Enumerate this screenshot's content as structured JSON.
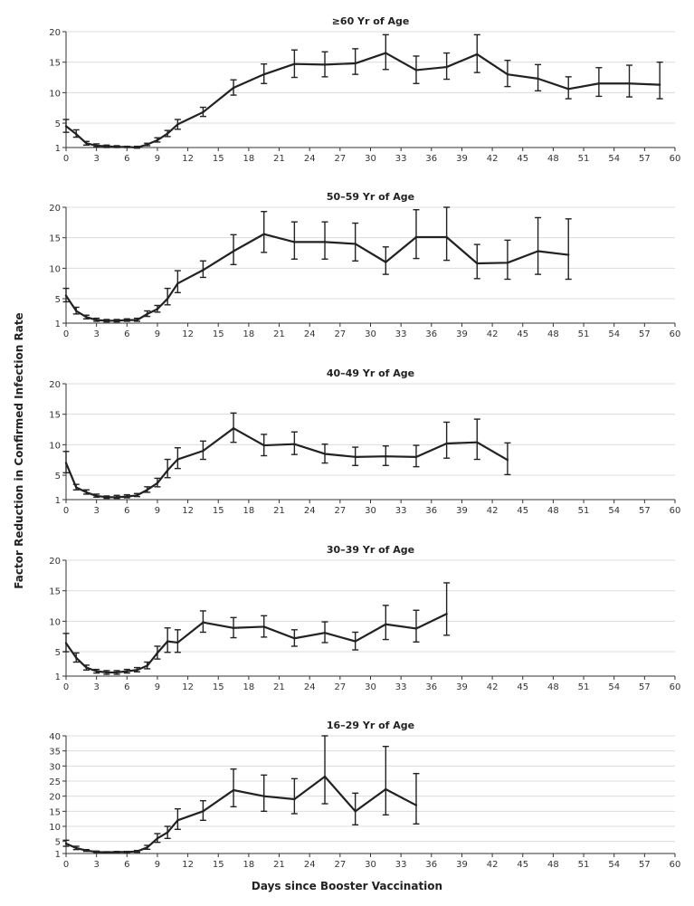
{
  "figure": {
    "ylabel": "Factor Reduction in Confirmed Infection Rate",
    "xlabel": "Days since Booster Vaccination"
  },
  "chart_data": [
    {
      "type": "line",
      "title": "≥60 Yr of Age",
      "xlim": [
        0,
        60
      ],
      "ylim": [
        1,
        20
      ],
      "x_ticks": [
        0,
        3,
        6,
        9,
        12,
        15,
        18,
        21,
        24,
        27,
        30,
        33,
        36,
        39,
        42,
        45,
        48,
        51,
        54,
        57,
        60
      ],
      "y_ticks": [
        1,
        5,
        10,
        15,
        20
      ],
      "series": [
        {
          "x": [
            0,
            1,
            2,
            3,
            4,
            5,
            6,
            7,
            8,
            9,
            10,
            11,
            13.5,
            16.5,
            19.5,
            22.5,
            25.5,
            28.5,
            31.5,
            34.5,
            37.5,
            40.5,
            43.5,
            46.5,
            49.5,
            52.5,
            55.5,
            58.5
          ],
          "y": [
            4.5,
            3.2,
            1.7,
            1.3,
            1.2,
            1.1,
            1.1,
            1.0,
            1.5,
            2.2,
            3.3,
            4.8,
            6.8,
            10.8,
            13.0,
            14.7,
            14.6,
            14.8,
            16.5,
            13.7,
            14.2,
            16.3,
            13.0,
            12.3,
            10.6,
            11.5,
            11.5,
            11.3
          ],
          "lower": [
            3.5,
            2.7,
            1.4,
            1.1,
            1.0,
            1.0,
            1.0,
            0.9,
            1.3,
            1.9,
            2.8,
            4.0,
            6.1,
            9.6,
            11.5,
            12.5,
            12.6,
            13.0,
            13.8,
            11.5,
            12.2,
            13.3,
            11.0,
            10.3,
            9.0,
            9.4,
            9.3,
            9.0
          ],
          "upper": [
            5.6,
            3.9,
            2.0,
            1.6,
            1.4,
            1.3,
            1.2,
            1.2,
            1.7,
            2.6,
            3.8,
            5.6,
            7.6,
            12.1,
            14.7,
            17.0,
            16.7,
            17.2,
            19.5,
            16.0,
            16.5,
            19.5,
            15.3,
            14.6,
            12.6,
            14.1,
            14.5,
            15.0
          ]
        }
      ]
    },
    {
      "type": "line",
      "title": "50–59 Yr of Age",
      "xlim": [
        0,
        60
      ],
      "ylim": [
        1,
        20
      ],
      "x_ticks": [
        0,
        3,
        6,
        9,
        12,
        15,
        18,
        21,
        24,
        27,
        30,
        33,
        36,
        39,
        42,
        45,
        48,
        51,
        54,
        57,
        60
      ],
      "y_ticks": [
        1,
        5,
        10,
        15,
        20
      ],
      "series": [
        {
          "x": [
            0,
            1,
            2,
            3,
            4,
            5,
            6,
            7,
            8,
            9,
            10,
            11,
            13.5,
            16.5,
            19.5,
            22.5,
            25.5,
            28.5,
            31.5,
            34.5,
            37.5,
            40.5,
            43.5,
            46.5,
            49.5
          ],
          "y": [
            5.5,
            3.0,
            2.0,
            1.5,
            1.4,
            1.4,
            1.5,
            1.5,
            2.5,
            3.3,
            5.0,
            7.5,
            9.7,
            12.8,
            15.6,
            14.3,
            14.3,
            14.0,
            11.0,
            15.1,
            15.1,
            10.8,
            10.9,
            12.8,
            12.2
          ],
          "lower": [
            4.5,
            2.5,
            1.7,
            1.3,
            1.2,
            1.2,
            1.3,
            1.3,
            2.1,
            2.8,
            4.0,
            6.0,
            8.5,
            10.6,
            12.6,
            11.5,
            11.5,
            11.2,
            9.0,
            11.6,
            11.3,
            8.3,
            8.2,
            9.0,
            8.2
          ],
          "upper": [
            6.7,
            3.6,
            2.3,
            1.8,
            1.6,
            1.6,
            1.7,
            1.8,
            3.0,
            3.9,
            6.7,
            9.6,
            11.2,
            15.5,
            19.3,
            17.6,
            17.6,
            17.4,
            13.5,
            19.6,
            20.0,
            13.9,
            14.6,
            18.3,
            18.1
          ]
        }
      ]
    },
    {
      "type": "line",
      "title": "40–49 Yr of Age",
      "xlim": [
        0,
        60
      ],
      "ylim": [
        1,
        20
      ],
      "x_ticks": [
        0,
        3,
        6,
        9,
        12,
        15,
        18,
        21,
        24,
        27,
        30,
        33,
        36,
        39,
        42,
        45,
        48,
        51,
        54,
        57,
        60
      ],
      "y_ticks": [
        1,
        5,
        10,
        15,
        20
      ],
      "series": [
        {
          "x": [
            0,
            1,
            2,
            3,
            4,
            5,
            6,
            7,
            8,
            9,
            10,
            11,
            13.5,
            16.5,
            19.5,
            22.5,
            25.5,
            28.5,
            31.5,
            34.5,
            37.5,
            40.5,
            43.5
          ],
          "y": [
            7.0,
            3.0,
            2.2,
            1.6,
            1.4,
            1.4,
            1.5,
            1.7,
            2.6,
            3.7,
            5.8,
            7.6,
            9.0,
            12.7,
            9.9,
            10.1,
            8.5,
            8.0,
            8.1,
            8.0,
            10.2,
            10.4,
            7.5
          ],
          "lower": [
            5.4,
            2.6,
            1.9,
            1.4,
            1.2,
            1.2,
            1.3,
            1.5,
            2.2,
            3.1,
            4.6,
            6.1,
            7.6,
            10.4,
            8.2,
            8.4,
            7.0,
            6.6,
            6.6,
            6.4,
            7.8,
            7.6,
            5.1
          ],
          "upper": [
            8.9,
            3.5,
            2.6,
            1.9,
            1.6,
            1.7,
            1.8,
            2.0,
            3.1,
            4.5,
            7.6,
            9.5,
            10.6,
            15.2,
            11.7,
            12.1,
            10.1,
            9.6,
            9.8,
            9.9,
            13.7,
            14.2,
            10.3
          ]
        }
      ]
    },
    {
      "type": "line",
      "title": "30–39 Yr of Age",
      "xlim": [
        0,
        60
      ],
      "ylim": [
        1,
        20
      ],
      "x_ticks": [
        0,
        3,
        6,
        9,
        12,
        15,
        18,
        21,
        24,
        27,
        30,
        33,
        36,
        39,
        42,
        45,
        48,
        51,
        54,
        57,
        60
      ],
      "y_ticks": [
        1,
        5,
        10,
        15,
        20
      ],
      "series": [
        {
          "x": [
            0,
            1,
            2,
            3,
            4,
            5,
            6,
            7,
            8,
            9,
            10,
            11,
            13.5,
            16.5,
            19.5,
            22.5,
            25.5,
            28.5,
            31.5,
            34.5,
            37.5
          ],
          "y": [
            6.4,
            4.0,
            2.4,
            1.8,
            1.6,
            1.6,
            1.8,
            2.0,
            2.7,
            4.8,
            6.7,
            6.5,
            9.8,
            8.9,
            9.1,
            7.2,
            8.1,
            6.7,
            9.5,
            8.8,
            11.2
          ],
          "lower": [
            5.0,
            3.3,
            2.0,
            1.5,
            1.3,
            1.3,
            1.5,
            1.7,
            2.2,
            3.8,
            4.9,
            4.9,
            8.2,
            7.3,
            7.4,
            5.9,
            6.5,
            5.3,
            7.0,
            6.6,
            7.7
          ],
          "upper": [
            8.0,
            4.8,
            2.8,
            2.1,
            1.9,
            1.9,
            2.1,
            2.4,
            3.3,
            5.9,
            8.9,
            8.6,
            11.7,
            10.6,
            10.9,
            8.6,
            9.9,
            8.2,
            12.6,
            11.8,
            16.3
          ]
        }
      ]
    },
    {
      "type": "line",
      "title": "16–29 Yr of Age",
      "xlim": [
        0,
        60
      ],
      "ylim": [
        1,
        40
      ],
      "x_ticks": [
        0,
        3,
        6,
        9,
        12,
        15,
        18,
        21,
        24,
        27,
        30,
        33,
        36,
        39,
        42,
        45,
        48,
        51,
        54,
        57,
        60
      ],
      "y_ticks": [
        1,
        5,
        10,
        15,
        20,
        25,
        30,
        35,
        40
      ],
      "series": [
        {
          "x": [
            0,
            1,
            2,
            3,
            4,
            5,
            6,
            7,
            8,
            9,
            10,
            11,
            13.5,
            16.5,
            19.5,
            22.5,
            25.5,
            28.5,
            31.5,
            34.5
          ],
          "y": [
            4.3,
            2.8,
            2.0,
            1.5,
            1.4,
            1.5,
            1.5,
            1.7,
            3.0,
            6.0,
            8.0,
            12.0,
            15.0,
            22.0,
            20.0,
            19.0,
            26.5,
            15.0,
            22.3,
            17.0
          ],
          "lower": [
            3.4,
            2.3,
            1.7,
            1.3,
            1.2,
            1.3,
            1.3,
            1.4,
            2.4,
            4.7,
            6.0,
            9.0,
            12.0,
            16.5,
            15.0,
            14.2,
            17.5,
            10.5,
            13.8,
            10.8
          ],
          "upper": [
            5.4,
            3.4,
            2.3,
            1.8,
            1.6,
            1.7,
            1.7,
            2.0,
            3.7,
            7.6,
            10.0,
            15.8,
            18.5,
            29.0,
            27.0,
            25.8,
            40.0,
            21.0,
            36.5,
            27.5
          ]
        }
      ]
    }
  ]
}
